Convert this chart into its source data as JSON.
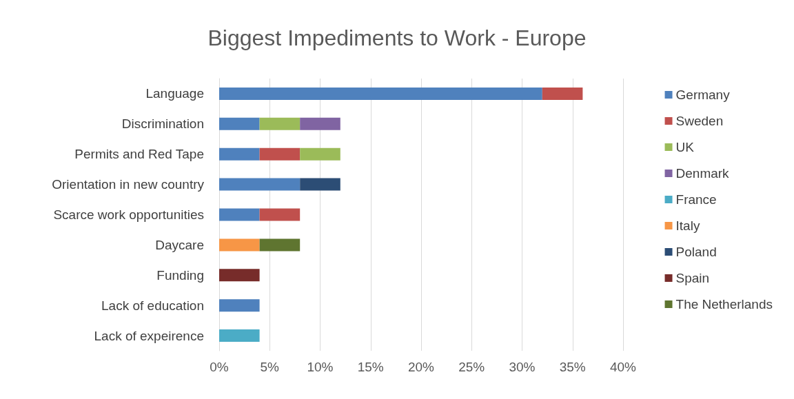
{
  "chart_data": {
    "type": "bar",
    "orientation": "horizontal",
    "stacked": true,
    "title": "Biggest Impediments to Work - Europe",
    "categories": [
      "Language",
      "Discrimination",
      "Permits and Red Tape",
      "Orientation in new country",
      "Scarce work opportunities",
      "Daycare",
      "Funding",
      "Lack of education",
      "Lack of expeirence"
    ],
    "series": [
      {
        "name": "Germany",
        "color": "#4f81bd",
        "values": [
          32,
          4,
          4,
          8,
          4,
          null,
          null,
          4,
          null
        ]
      },
      {
        "name": "Sweden",
        "color": "#c0504d",
        "values": [
          4,
          null,
          4,
          null,
          4,
          null,
          null,
          null,
          null
        ]
      },
      {
        "name": "UK",
        "color": "#9bbb59",
        "values": [
          null,
          4,
          4,
          null,
          null,
          null,
          null,
          null,
          null
        ]
      },
      {
        "name": "Denmark",
        "color": "#8064a2",
        "values": [
          null,
          4,
          null,
          null,
          null,
          null,
          null,
          null,
          null
        ]
      },
      {
        "name": "France",
        "color": "#4bacc6",
        "values": [
          null,
          null,
          null,
          null,
          null,
          null,
          null,
          null,
          4
        ]
      },
      {
        "name": "Italy",
        "color": "#f79646",
        "values": [
          null,
          null,
          null,
          null,
          null,
          4,
          null,
          null,
          null
        ]
      },
      {
        "name": "Poland",
        "color": "#2c4d75",
        "values": [
          null,
          null,
          null,
          4,
          null,
          null,
          null,
          null,
          null
        ]
      },
      {
        "name": "Spain",
        "color": "#772c2a",
        "values": [
          null,
          null,
          null,
          null,
          null,
          null,
          4,
          null,
          null
        ]
      },
      {
        "name": "The Netherlands",
        "color": "#5f7530",
        "values": [
          null,
          null,
          null,
          null,
          null,
          4,
          null,
          null,
          null
        ]
      }
    ],
    "xlim": [
      0,
      40
    ],
    "xticks": [
      {
        "value": 0,
        "label": "0%"
      },
      {
        "value": 5,
        "label": "5%"
      },
      {
        "value": 10,
        "label": "10%"
      },
      {
        "value": 15,
        "label": "15%"
      },
      {
        "value": 20,
        "label": "20%"
      },
      {
        "value": 25,
        "label": "25%"
      },
      {
        "value": 30,
        "label": "30%"
      },
      {
        "value": 35,
        "label": "35%"
      },
      {
        "value": 40,
        "label": "40%"
      }
    ],
    "grid": "x",
    "legend": "right"
  }
}
